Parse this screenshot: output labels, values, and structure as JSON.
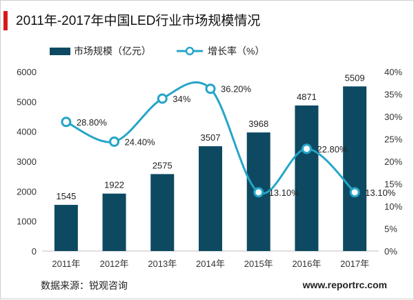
{
  "header": {
    "title": "2011年-2017年中国LED行业市场规模情况"
  },
  "footer": {
    "source": "数据来源：锐观咨询",
    "website": "www.reportrc.com"
  },
  "chart_data": {
    "type": "bar",
    "title": "2011年-2017年中国LED行业市场规模情况",
    "categories": [
      "2011年",
      "2012年",
      "2013年",
      "2014年",
      "2015年",
      "2016年",
      "2017年"
    ],
    "series": [
      {
        "name": "市场规模（亿元）",
        "type": "bar",
        "axis": "left",
        "color": "#0d4a62",
        "values": [
          1545,
          1922,
          2575,
          3507,
          3968,
          4871,
          5509
        ],
        "labels": [
          "1545",
          "1922",
          "2575",
          "3507",
          "3968",
          "4871",
          "5509"
        ]
      },
      {
        "name": "增长率（%）",
        "type": "line",
        "axis": "right",
        "color": "#24a5c8",
        "values": [
          28.8,
          24.4,
          34,
          36.2,
          13.1,
          22.8,
          13.1
        ],
        "labels": [
          "28.80%",
          "24.40%",
          "34%",
          "36.20%",
          "13.10%",
          "22.80%",
          "13.10%"
        ]
      }
    ],
    "y_left": {
      "min": 0,
      "max": 6000,
      "ticks": [
        "0",
        "1000",
        "2000",
        "3000",
        "4000",
        "5000",
        "6000"
      ]
    },
    "y_right": {
      "min": 0,
      "max": 40,
      "ticks": [
        "0%",
        "5%",
        "10%",
        "15%",
        "20%",
        "25%",
        "30%",
        "35%",
        "40%"
      ]
    },
    "legend_position": "top-center",
    "grid": false
  }
}
